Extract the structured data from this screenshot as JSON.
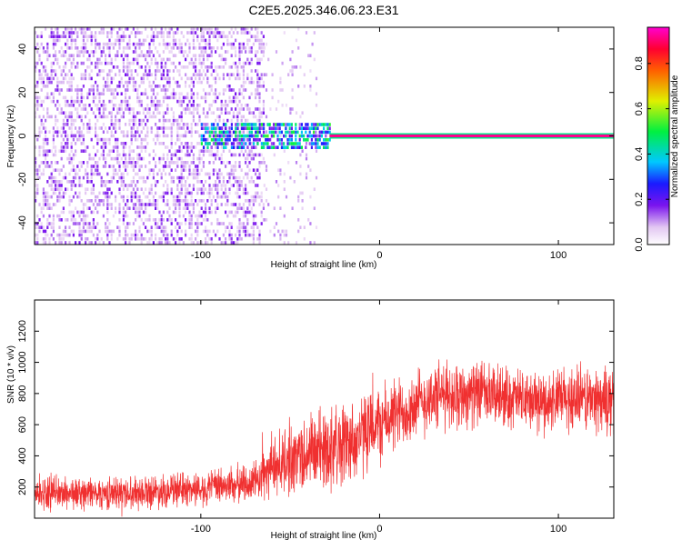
{
  "title": "C2E5.2025.346.06.23.E31",
  "chart_data": [
    {
      "type": "heatmap",
      "xlabel": "Height of straight line (km)",
      "ylabel": "Frequency (Hz)",
      "xlim": [
        -193,
        131
      ],
      "ylim": [
        -50,
        50
      ],
      "xticks": [
        "-100",
        "0",
        "100"
      ],
      "xtick_values": [
        -100,
        0,
        100
      ],
      "yticks": [
        "40",
        "20",
        "0",
        "-20",
        "-40"
      ],
      "ytick_values": [
        40,
        20,
        0,
        -20,
        -40
      ],
      "colorbar": {
        "label": "Normalized spectral amplitude",
        "range": [
          0,
          0.96
        ],
        "ticks": [
          "0.0",
          "0.2",
          "0.4",
          "0.6",
          "0.8"
        ],
        "tick_values": [
          0,
          0.2,
          0.4,
          0.6,
          0.8
        ],
        "colormap": "white-purple-blue-cyan-green-yellow-red-magenta"
      },
      "regions": [
        {
          "x_range": [
            -193,
            -65
          ],
          "freq_range": [
            -50,
            50
          ],
          "amplitude": 0.15
        },
        {
          "x_range": [
            -65,
            -35
          ],
          "freq_range": [
            -50,
            50
          ],
          "amplitude": 0.05
        },
        {
          "x_range": [
            -100,
            -28
          ],
          "freq_range": [
            -6,
            6
          ],
          "amplitude": 0.3
        },
        {
          "x_range": [
            -28,
            131
          ],
          "freq_range": [
            -1,
            1
          ],
          "amplitude": 0.92
        }
      ]
    },
    {
      "type": "line",
      "xlabel": "Height of straight line (km)",
      "ylabel": "SNR (10 * v/v)",
      "xlim": [
        -193,
        131
      ],
      "ylim": [
        0,
        1400
      ],
      "xticks": [
        "-100",
        "0",
        "100"
      ],
      "xtick_values": [
        -100,
        0,
        100
      ],
      "yticks": [
        "200",
        "400",
        "600",
        "800",
        "1000",
        "1200"
      ],
      "ytick_values": [
        200,
        400,
        600,
        800,
        1000,
        1200
      ],
      "color": "#f03030",
      "trend_x": [
        -193,
        -150,
        -100,
        -70,
        -60,
        -45,
        -30,
        -15,
        0,
        15,
        30,
        50,
        70,
        90,
        110,
        131
      ],
      "trend_y": [
        160,
        160,
        190,
        230,
        330,
        400,
        450,
        500,
        600,
        700,
        780,
        800,
        780,
        740,
        770,
        750
      ],
      "spread": [
        160,
        160,
        170,
        200,
        300,
        380,
        420,
        420,
        380,
        360,
        340,
        320,
        300,
        300,
        340,
        320
      ]
    }
  ]
}
